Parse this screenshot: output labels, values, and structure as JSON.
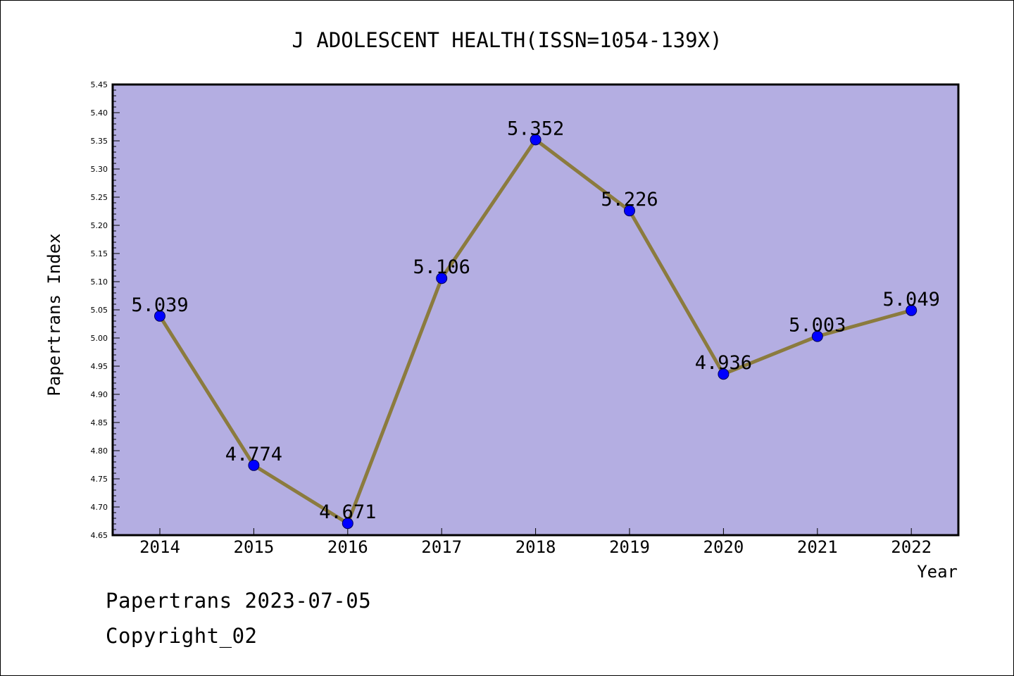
{
  "footer": {
    "line1": "Papertrans 2023-07-05",
    "line2": "Copyright_02"
  },
  "colors": {
    "plot_background": "#b4aee2",
    "line": "#8b7b3e",
    "marker": "#0000ff",
    "axis": "#000000"
  },
  "chart_data": {
    "type": "line",
    "title": "J ADOLESCENT HEALTH(ISSN=1054-139X)",
    "xlabel": "Year",
    "ylabel": "Papertrans Index",
    "categories": [
      "2014",
      "2015",
      "2016",
      "2017",
      "2018",
      "2019",
      "2020",
      "2021",
      "2022"
    ],
    "series": [
      {
        "values": [
          5.039,
          4.774,
          4.671,
          5.106,
          5.352,
          5.226,
          4.936,
          5.003,
          5.049
        ],
        "labels": [
          "5.039",
          "4.774",
          "4.671",
          "5.106",
          "5.352",
          "5.226",
          "4.936",
          "5.003",
          "5.049"
        ]
      }
    ],
    "ylim": [
      4.65,
      5.45
    ],
    "yticks": [
      "4.65",
      "4.70",
      "4.75",
      "4.80",
      "4.85",
      "4.90",
      "4.95",
      "5.00",
      "5.05",
      "5.10",
      "5.15",
      "5.20",
      "5.25",
      "5.30",
      "5.35",
      "5.40",
      "5.45"
    ],
    "grid": false,
    "legend": "none"
  }
}
